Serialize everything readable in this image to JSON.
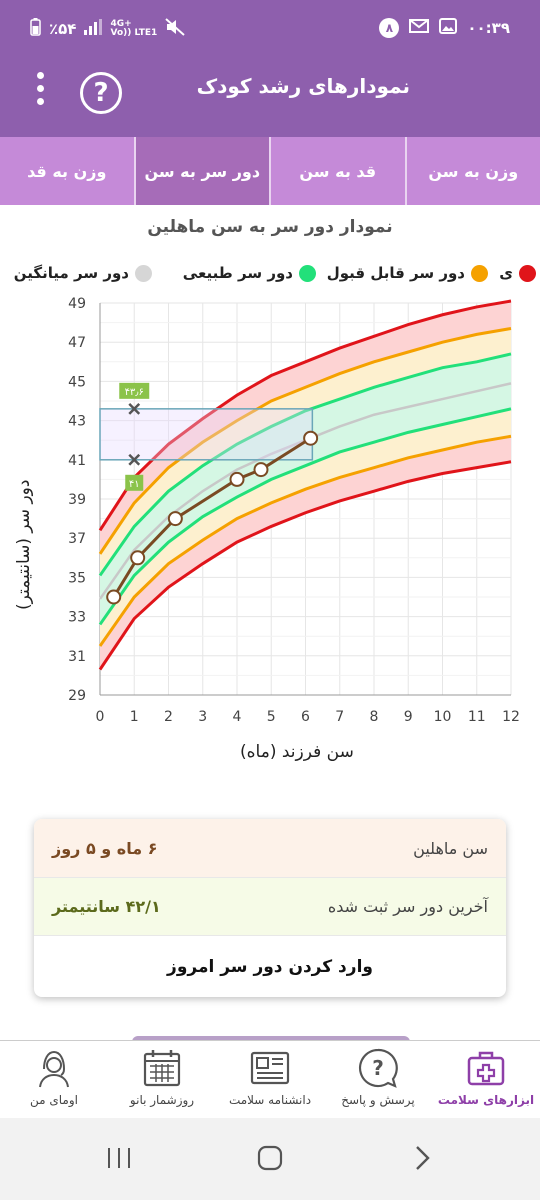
{
  "status_bar": {
    "battery": "٪۵۴",
    "network_top": "4G+",
    "network_bottom": "Vo)) LTE1",
    "notif_count": "۸",
    "time": "۰۰:۳۹"
  },
  "app_bar": {
    "title": "نمودارهای رشد کودک",
    "help_label": "?"
  },
  "tabs": [
    {
      "label": "وزن به سن",
      "active": false
    },
    {
      "label": "قد به سن",
      "active": false
    },
    {
      "label": "دور سر به سن",
      "active": true
    },
    {
      "label": "وزن به قد",
      "active": false
    }
  ],
  "chart_title": "نمودار دور سر به سن ماهلین",
  "legend": [
    {
      "label": "ی",
      "color": "#e0141a"
    },
    {
      "label": "دور سر قابل قبول",
      "color": "#f5a100"
    },
    {
      "label": "دور سر طبیعی",
      "color": "#22e07a"
    },
    {
      "label": "دور سر میانگین",
      "color": "#d6d6d6"
    }
  ],
  "chart_data": {
    "type": "line",
    "xlabel": "سن فرزند (ماه)",
    "ylabel": "دور سر (سانتیمتر)",
    "xlim": [
      0,
      12
    ],
    "ylim": [
      29,
      49
    ],
    "x_ticks": [
      "0",
      "1",
      "2",
      "3",
      "4",
      "5",
      "6",
      "7",
      "8",
      "9",
      "10",
      "11",
      "12"
    ],
    "y_ticks": [
      "29",
      "31",
      "33",
      "35",
      "37",
      "39",
      "41",
      "43",
      "45",
      "47",
      "49"
    ],
    "grid": true,
    "reference_x": [
      0,
      1,
      2,
      3,
      4,
      5,
      6,
      7,
      8,
      9,
      10,
      11,
      12
    ],
    "reference_curves": [
      {
        "name": "upper-red",
        "color": "#e0141a",
        "values": [
          37.4,
          40.1,
          41.8,
          43.1,
          44.3,
          45.3,
          46.0,
          46.7,
          47.3,
          47.9,
          48.4,
          48.8,
          49.1
        ]
      },
      {
        "name": "upper-orange",
        "color": "#f5a100",
        "values": [
          36.2,
          38.8,
          40.6,
          41.9,
          43.0,
          44.0,
          44.7,
          45.4,
          46.0,
          46.5,
          47.0,
          47.4,
          47.7
        ]
      },
      {
        "name": "upper-green",
        "color": "#22e07a",
        "values": [
          35.1,
          37.6,
          39.4,
          40.7,
          41.8,
          42.7,
          43.5,
          44.1,
          44.7,
          45.2,
          45.7,
          46.0,
          46.4
        ]
      },
      {
        "name": "median",
        "color": "#c8c8c8",
        "values": [
          33.9,
          36.4,
          38.1,
          39.4,
          40.5,
          41.3,
          42.0,
          42.7,
          43.3,
          43.7,
          44.1,
          44.5,
          44.9
        ]
      },
      {
        "name": "lower-green",
        "color": "#22e07a",
        "values": [
          32.6,
          35.1,
          36.8,
          38.1,
          39.1,
          40.0,
          40.7,
          41.4,
          41.9,
          42.4,
          42.8,
          43.2,
          43.6
        ]
      },
      {
        "name": "lower-orange",
        "color": "#f5a100",
        "values": [
          31.5,
          34.0,
          35.7,
          36.9,
          38.0,
          38.8,
          39.5,
          40.1,
          40.6,
          41.1,
          41.5,
          41.9,
          42.2
        ]
      },
      {
        "name": "lower-red",
        "color": "#e0141a",
        "values": [
          30.3,
          32.9,
          34.5,
          35.7,
          36.8,
          37.6,
          38.3,
          38.9,
          39.4,
          39.9,
          40.3,
          40.6,
          40.9
        ]
      }
    ],
    "child_series": {
      "color": "#7a4a23",
      "points": [
        [
          0.4,
          34.0
        ],
        [
          1.1,
          36.0
        ],
        [
          2.2,
          38.0
        ],
        [
          4.0,
          40.0
        ],
        [
          4.7,
          40.5
        ],
        [
          6.15,
          42.1
        ]
      ]
    },
    "selection": {
      "x": 1.0,
      "y_min": 41.0,
      "y_max": 43.6,
      "x_range": [
        0,
        6.2
      ],
      "label_top": "۴۳٫۶",
      "label_bottom": "۴۱"
    }
  },
  "info_card": {
    "age_label": "سن ماهلین",
    "age_value": "۶ ماه و ۵ روز",
    "last_label": "آخرین دور سر ثبت شده",
    "last_value": "۴۲/۱ سانتیمتر",
    "action_label": "وارد کردن دور سر امروز"
  },
  "bottom_nav": [
    {
      "label": "ابزارهای سلامت",
      "active": true
    },
    {
      "label": "پرسش و پاسخ",
      "active": false
    },
    {
      "label": "دانشنامه سلامت",
      "active": false
    },
    {
      "label": "روزشمار بانو",
      "active": false
    },
    {
      "label": "اومای من",
      "active": false
    }
  ]
}
